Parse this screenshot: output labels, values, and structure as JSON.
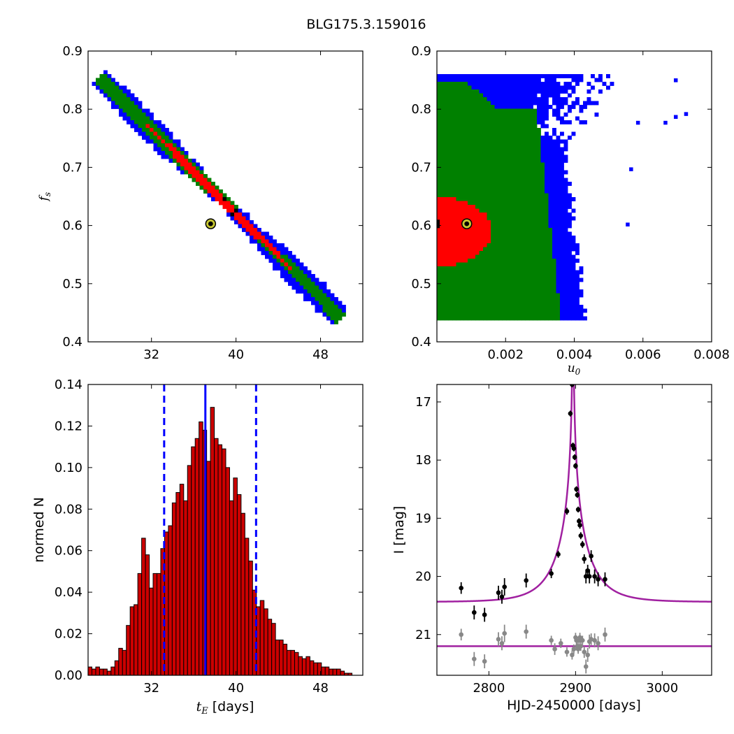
{
  "title": "BLG175.3.159016",
  "colors": {
    "contour_outer": "#0000ff",
    "contour_mid": "#008000",
    "contour_inner": "#ff0000",
    "contour_core": "#000000",
    "best_marker": "#c8c832",
    "hist_bar": "#cc0000",
    "median_line": "#0000ff",
    "model_curve": "#a020a0",
    "data_points": "#000000",
    "residual_points": "#888888"
  },
  "chart_data": [
    {
      "type": "heatmap",
      "panel": "top-left",
      "xlabel": "",
      "ylabel_symbol": "f",
      "ylabel_sub": "s",
      "xlim": [
        26,
        52
      ],
      "ylim": [
        0.4,
        0.9
      ],
      "xticks": [
        32,
        40,
        48
      ],
      "xtick_labels": [
        "32",
        "40",
        "48"
      ],
      "yticks": [
        0.4,
        0.5,
        0.6,
        0.7,
        0.8,
        0.9
      ],
      "ytick_labels": [
        "0.4",
        "0.5",
        "0.6",
        "0.7",
        "0.8",
        "0.9"
      ],
      "best_fit": {
        "x": 37.6,
        "y": 0.603
      },
      "note_ranges": {
        "blue_x": [
          27,
          50
        ],
        "blue_y": [
          0.44,
          0.86
        ]
      }
    },
    {
      "type": "heatmap",
      "panel": "top-right",
      "xlabel_symbol": "u",
      "xlabel_sub": "0",
      "ylabel": "",
      "xlim": [
        0,
        0.008
      ],
      "ylim": [
        0.4,
        0.9
      ],
      "xticks": [
        0.002,
        0.004,
        0.006,
        0.008
      ],
      "xtick_labels": [
        "0.002",
        "0.004",
        "0.006",
        "0.008"
      ],
      "yticks": [
        0.4,
        0.5,
        0.6,
        0.7,
        0.8,
        0.9
      ],
      "ytick_labels": [
        "0.4",
        "0.5",
        "0.6",
        "0.7",
        "0.8",
        "0.9"
      ],
      "best_fit": {
        "x": 0.00087,
        "y": 0.603
      }
    },
    {
      "type": "bar",
      "panel": "bottom-left",
      "xlabel_symbol": "t",
      "xlabel_sub": "E",
      "xlabel_suffix": " [days]",
      "ylabel": "normed N",
      "xlim": [
        26,
        52
      ],
      "ylim": [
        0,
        0.14
      ],
      "xticks": [
        32,
        40,
        48
      ],
      "xtick_labels": [
        "32",
        "40",
        "48"
      ],
      "yticks": [
        0,
        0.02,
        0.04,
        0.06,
        0.08,
        0.1,
        0.12,
        0.14
      ],
      "ytick_labels": [
        "0.00",
        "0.02",
        "0.04",
        "0.06",
        "0.08",
        "0.10",
        "0.12",
        "0.14"
      ],
      "bin_start": 26.0,
      "bin_width": 0.362,
      "values": [
        0.004,
        0.003,
        0.004,
        0.003,
        0.003,
        0.002,
        0.004,
        0.007,
        0.013,
        0.012,
        0.024,
        0.033,
        0.034,
        0.049,
        0.066,
        0.058,
        0.042,
        0.049,
        0.049,
        0.061,
        0.069,
        0.072,
        0.083,
        0.088,
        0.092,
        0.084,
        0.101,
        0.11,
        0.114,
        0.122,
        0.118,
        0.103,
        0.129,
        0.114,
        0.111,
        0.109,
        0.1,
        0.084,
        0.095,
        0.087,
        0.078,
        0.066,
        0.055,
        0.041,
        0.033,
        0.036,
        0.032,
        0.027,
        0.025,
        0.017,
        0.017,
        0.015,
        0.012,
        0.012,
        0.011,
        0.009,
        0.008,
        0.009,
        0.007,
        0.006,
        0.006,
        0.004,
        0.004,
        0.003,
        0.003,
        0.003,
        0.002,
        0.001,
        0.001
      ],
      "median": 37.1,
      "lower_bound": 33.2,
      "upper_bound": 41.9
    },
    {
      "type": "scatter",
      "panel": "bottom-right",
      "xlabel": "HJD-2450000 [days]",
      "ylabel": "I [mag]",
      "xlim": [
        2740,
        3057
      ],
      "ylim": [
        21.7,
        16.7
      ],
      "xticks": [
        2800,
        2900,
        3000
      ],
      "xtick_labels": [
        "2800",
        "2900",
        "3000"
      ],
      "yticks": [
        17,
        18,
        19,
        20,
        21
      ],
      "ytick_labels": [
        "17",
        "18",
        "19",
        "20",
        "21"
      ],
      "model": {
        "t0": 2897,
        "tE": 37.1,
        "u0": 0.00087,
        "base_mag": 20.44,
        "residual_baseline": 21.2
      },
      "series": [
        {
          "x": [
            2768,
            2783,
            2795,
            2811,
            2815,
            2818,
            2843,
            2872,
            2880,
            2890,
            2894,
            2896,
            2897,
            2898,
            2899,
            2900,
            2901,
            2902,
            2903,
            2904,
            2905,
            2906,
            2908,
            2910,
            2912,
            2914,
            2916,
            2918,
            2922,
            2926,
            2934
          ],
          "y": [
            20.2,
            20.62,
            20.66,
            20.28,
            20.35,
            20.18,
            20.07,
            19.95,
            19.62,
            18.88,
            17.2,
            16.7,
            17.75,
            17.8,
            17.95,
            18.1,
            18.5,
            18.6,
            18.85,
            19.05,
            19.12,
            19.3,
            19.45,
            19.7,
            20.0,
            19.9,
            20.0,
            19.65,
            20.0,
            20.05,
            20.05
          ],
          "err": [
            0.1,
            0.12,
            0.12,
            0.12,
            0.12,
            0.15,
            0.12,
            0.08,
            0.06,
            0.06,
            0.05,
            0.05,
            0.05,
            0.05,
            0.05,
            0.05,
            0.05,
            0.05,
            0.05,
            0.05,
            0.06,
            0.06,
            0.06,
            0.08,
            0.12,
            0.1,
            0.12,
            0.1,
            0.12,
            0.12,
            0.12
          ]
        },
        {
          "x": [
            2768,
            2783,
            2795,
            2811,
            2815,
            2818,
            2843,
            2872,
            2876,
            2883,
            2890,
            2896,
            2898,
            2900,
            2901,
            2902,
            2903,
            2904,
            2905,
            2906,
            2908,
            2910,
            2912,
            2914,
            2916,
            2918,
            2922,
            2926,
            2934
          ],
          "y": [
            21.0,
            21.42,
            21.46,
            21.08,
            21.15,
            20.98,
            20.95,
            21.1,
            21.25,
            21.15,
            21.3,
            21.35,
            21.25,
            21.05,
            21.1,
            21.2,
            21.25,
            21.1,
            21.05,
            21.2,
            21.1,
            21.3,
            21.55,
            21.35,
            21.12,
            21.08,
            21.1,
            21.15,
            21.0
          ],
          "err": [
            0.1,
            0.12,
            0.12,
            0.12,
            0.12,
            0.15,
            0.12,
            0.08,
            0.1,
            0.08,
            0.08,
            0.08,
            0.08,
            0.08,
            0.08,
            0.08,
            0.08,
            0.08,
            0.08,
            0.08,
            0.08,
            0.1,
            0.12,
            0.12,
            0.12,
            0.1,
            0.12,
            0.12,
            0.12
          ]
        }
      ]
    }
  ]
}
